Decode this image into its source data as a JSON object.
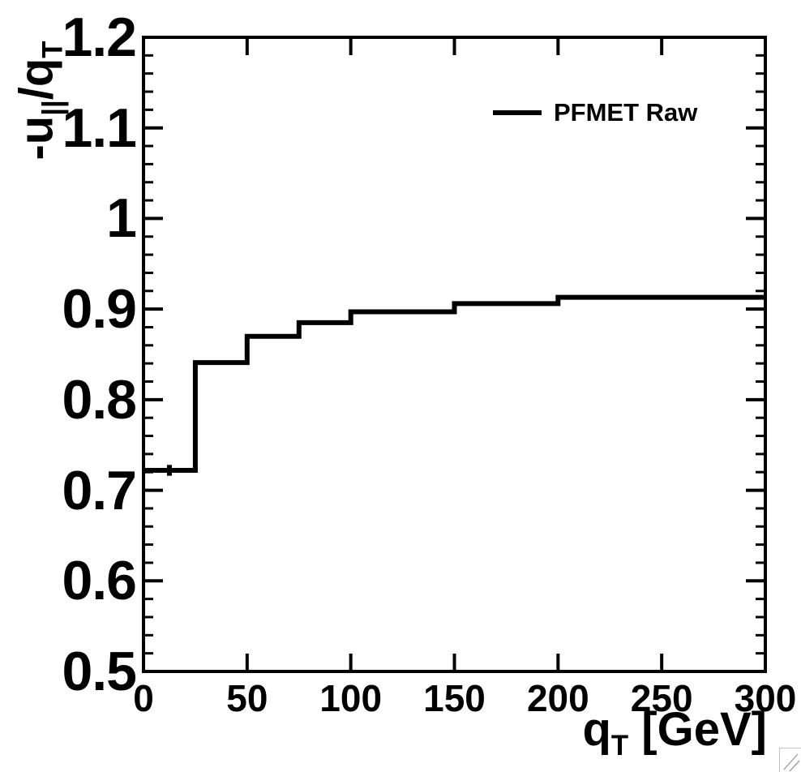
{
  "canvas": {
    "background": "#ffffff",
    "foreground": "#000000"
  },
  "chart_data": {
    "type": "line",
    "style": "step-histogram",
    "title": "",
    "xlabel": "q_T [GeV]",
    "ylabel": "-u_||/q_T",
    "xlim": [
      0,
      300
    ],
    "ylim": [
      0.5,
      1.2
    ],
    "x_major_ticks": [
      0,
      50,
      100,
      150,
      200,
      250,
      300
    ],
    "x_tick_labels": [
      "0",
      "50",
      "100",
      "150",
      "200",
      "250",
      "300"
    ],
    "y_major_ticks": [
      0.5,
      0.6,
      0.7,
      0.8,
      0.9,
      1.0,
      1.1,
      1.2
    ],
    "y_tick_labels": [
      "0.5",
      "0.6",
      "0.7",
      "0.8",
      "0.9",
      "1",
      "1.1",
      "1.2"
    ],
    "y_minor_tick_step": 0.02,
    "grid": false,
    "legend_position": "top-right",
    "series": [
      {
        "name": "PFMET Raw",
        "color": "#000000",
        "line_width": 6,
        "bin_edges": [
          0,
          25,
          50,
          75,
          100,
          150,
          200,
          300
        ],
        "values": [
          0.722,
          0.841,
          0.87,
          0.885,
          0.897,
          0.906,
          0.913
        ],
        "first_bin_error": {
          "x": 12.5,
          "y": 0.722,
          "yerr": 0.006
        }
      }
    ]
  },
  "titles": {
    "x_parts": [
      {
        "text": "q"
      },
      {
        "text": "T",
        "sub": true
      },
      {
        "text": " [GeV]"
      }
    ],
    "y_parts": [
      {
        "text": "-u"
      },
      {
        "text": "||",
        "sub": true
      },
      {
        "text": "/q"
      },
      {
        "text": "T",
        "sub": true
      }
    ]
  },
  "legend": {
    "entries": [
      {
        "label": "PFMET Raw",
        "color": "#000000",
        "style": "line"
      }
    ]
  }
}
